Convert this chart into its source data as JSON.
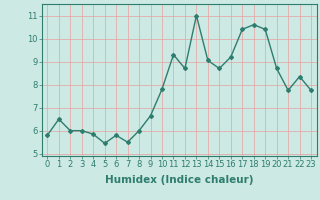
{
  "x": [
    0,
    1,
    2,
    3,
    4,
    5,
    6,
    7,
    8,
    9,
    10,
    11,
    12,
    13,
    14,
    15,
    16,
    17,
    18,
    19,
    20,
    21,
    22,
    23
  ],
  "y": [
    5.8,
    6.5,
    6.0,
    6.0,
    5.85,
    5.45,
    5.8,
    5.5,
    6.0,
    6.65,
    7.8,
    9.3,
    8.7,
    11.0,
    9.05,
    8.7,
    9.2,
    10.4,
    10.6,
    10.4,
    8.7,
    7.75,
    8.35,
    7.75
  ],
  "line_color": "#2e7d6e",
  "marker": "D",
  "marker_size": 2.0,
  "line_width": 1.0,
  "xlabel": "Humidex (Indice chaleur)",
  "ylim": [
    4.9,
    11.5
  ],
  "xlim": [
    -0.5,
    23.5
  ],
  "yticks": [
    5,
    6,
    7,
    8,
    9,
    10,
    11
  ],
  "xticks": [
    0,
    1,
    2,
    3,
    4,
    5,
    6,
    7,
    8,
    9,
    10,
    11,
    12,
    13,
    14,
    15,
    16,
    17,
    18,
    19,
    20,
    21,
    22,
    23
  ],
  "bg_color": "#cce9e4",
  "grid_color": "#e8a0a0",
  "axes_color": "#2e7d6e",
  "tick_color": "#2e7d6e",
  "label_color": "#2e7d6e",
  "xlabel_fontsize": 7.5,
  "tick_fontsize": 6.0
}
